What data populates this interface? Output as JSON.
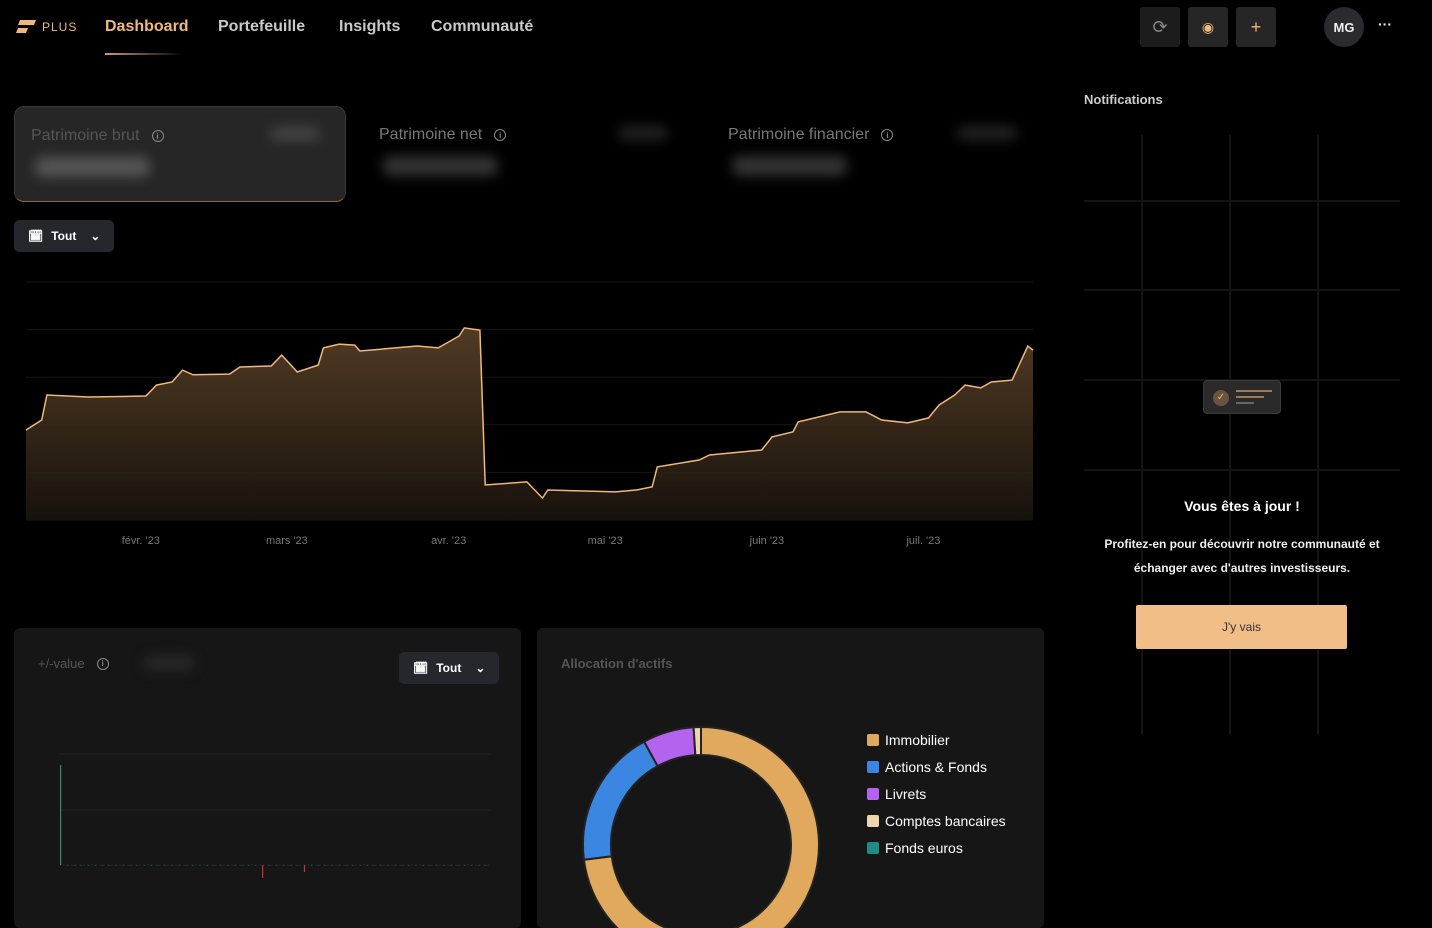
{
  "nav": {
    "brand": "PLUS",
    "items": [
      {
        "label": "Dashboard",
        "active": true
      },
      {
        "label": "Portefeuille"
      },
      {
        "label": "Insights"
      },
      {
        "label": "Communauté"
      }
    ]
  },
  "toolbar": {
    "refresh_icon": "refresh-icon",
    "eye_icon": "eye-icon",
    "add_icon": "plus-icon",
    "avatar": "MG",
    "more_icon": "more-icon"
  },
  "cards": [
    {
      "label": "Patrimoine brut",
      "selected": true
    },
    {
      "label": "Patrimoine net"
    },
    {
      "label": "Patrimoine financier"
    }
  ],
  "period_filter": {
    "label": "Tout"
  },
  "chart_data": [
    {
      "type": "area",
      "xlabel": "",
      "ylabel": "",
      "y_units": "hidden (values masked)",
      "x_ticks": [
        "févr. '23",
        "mars '23",
        "avr. '23",
        "mai '23",
        "juin '23",
        "juil. '23"
      ],
      "x_tick_dates": [
        "2023-02-01",
        "2023-03-01",
        "2023-04-01",
        "2023-05-01",
        "2023-06-01",
        "2023-07-01"
      ],
      "xlim": [
        "2023-01-10",
        "2023-07-22"
      ],
      "ylim": [
        0,
        100
      ],
      "grid": true,
      "color": "#f0b87a",
      "series": [
        {
          "points": [
            [
              "2023-01-10",
              37.8
            ],
            [
              "2023-01-13",
              42
            ],
            [
              "2023-01-14",
              52.5
            ],
            [
              "2023-01-22",
              51.7
            ],
            [
              "2023-02-02",
              52.1
            ],
            [
              "2023-02-04",
              56.7
            ],
            [
              "2023-02-07",
              58
            ],
            [
              "2023-02-09",
              63
            ],
            [
              "2023-02-11",
              61
            ],
            [
              "2023-02-18",
              61.3
            ],
            [
              "2023-02-20",
              64.3
            ],
            [
              "2023-02-26",
              64.7
            ],
            [
              "2023-02-28",
              69.3
            ],
            [
              "2023-03-03",
              62.2
            ],
            [
              "2023-03-07",
              65.1
            ],
            [
              "2023-03-08",
              72.3
            ],
            [
              "2023-03-11",
              73.9
            ],
            [
              "2023-03-14",
              73.5
            ],
            [
              "2023-03-15",
              71
            ],
            [
              "2023-03-26",
              73.1
            ],
            [
              "2023-03-30",
              72.3
            ],
            [
              "2023-04-03",
              77.3
            ],
            [
              "2023-04-04",
              80.7
            ],
            [
              "2023-04-07",
              79.8
            ],
            [
              "2023-04-08",
              14.7
            ],
            [
              "2023-04-16",
              16
            ],
            [
              "2023-04-19",
              9.2
            ],
            [
              "2023-04-20",
              12.6
            ],
            [
              "2023-05-03",
              11.8
            ],
            [
              "2023-05-07",
              12.6
            ],
            [
              "2023-05-10",
              13.9
            ],
            [
              "2023-05-11",
              22.3
            ],
            [
              "2023-05-19",
              25.2
            ],
            [
              "2023-05-21",
              27.3
            ],
            [
              "2023-05-31",
              29.4
            ],
            [
              "2023-06-02",
              34.9
            ],
            [
              "2023-06-06",
              37
            ],
            [
              "2023-06-07",
              41.2
            ],
            [
              "2023-06-15",
              45.4
            ],
            [
              "2023-06-20",
              45.4
            ],
            [
              "2023-06-23",
              42
            ],
            [
              "2023-06-28",
              40.8
            ],
            [
              "2023-07-02",
              42.9
            ],
            [
              "2023-07-04",
              48.3
            ],
            [
              "2023-07-07",
              52.5
            ],
            [
              "2023-07-09",
              56.7
            ],
            [
              "2023-07-12",
              55.5
            ],
            [
              "2023-07-14",
              58
            ],
            [
              "2023-07-18",
              58.8
            ],
            [
              "2023-07-21",
              73.1
            ],
            [
              "2023-07-22",
              71.4
            ]
          ]
        }
      ]
    },
    {
      "type": "bar",
      "title": "+/-value",
      "ylim": [
        -0.15,
        1
      ],
      "grid": true,
      "values": [
        1,
        0,
        0,
        0,
        0,
        0,
        0,
        0,
        0,
        0,
        0,
        0,
        0,
        0,
        0,
        0,
        0,
        0,
        0,
        0,
        0,
        0,
        0,
        0,
        0,
        0,
        0,
        0,
        0,
        -0.13,
        0,
        0,
        0,
        0,
        0,
        -0.07,
        0,
        0,
        0,
        0,
        0,
        0,
        0,
        0,
        0,
        0,
        0,
        0,
        0,
        0,
        0,
        0,
        0,
        0,
        0,
        0,
        0,
        0,
        0,
        0,
        0,
        0
      ],
      "colors": {
        "positive": "#2e8b6f",
        "negative": "#c0392b"
      }
    },
    {
      "type": "pie",
      "title": "Allocation d'actifs",
      "donut": true,
      "categories": [
        "Immobilier",
        "Actions & Fonds",
        "Livrets",
        "Comptes bancaires",
        "Fonds euros"
      ],
      "values": [
        73,
        19,
        7,
        1,
        0
      ],
      "colors": [
        "#e0a95e",
        "#3b86e0",
        "#b462f0",
        "#f0d4b0",
        "#1e8c82"
      ]
    }
  ],
  "plusvalue": {
    "title": "+/-value",
    "filter": "Tout"
  },
  "allocation": {
    "title": "Allocation d'actifs"
  },
  "notifications": {
    "title": "Notifications",
    "heading": "Vous êtes à jour !",
    "text1": "Profitez-en pour découvrir notre communauté et",
    "text2": "échanger avec d'autres investisseurs.",
    "button": "J'y vais"
  }
}
